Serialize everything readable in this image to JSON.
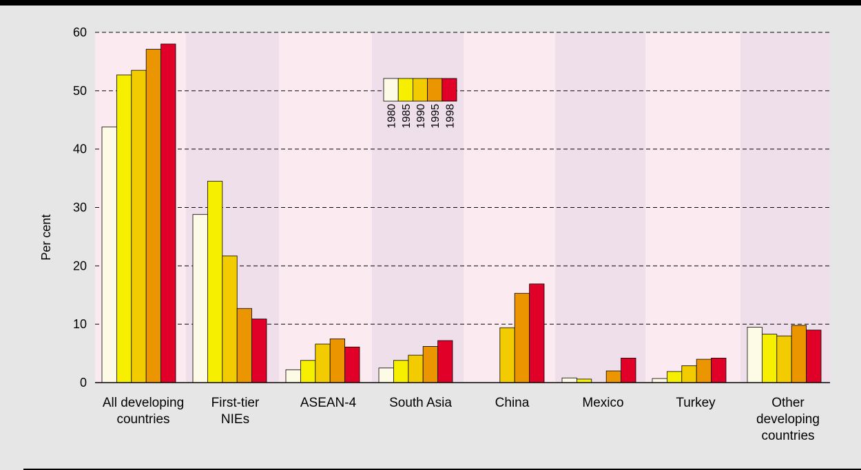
{
  "chart_data": {
    "type": "bar",
    "title": "",
    "xlabel": "",
    "ylabel": "Per cent",
    "ylim": [
      0,
      60
    ],
    "yticks": [
      0,
      10,
      20,
      30,
      40,
      50,
      60
    ],
    "grid": true,
    "legend_position": "top-center",
    "categories": [
      [
        "All developing",
        "countries"
      ],
      [
        "First-tier",
        "NIEs"
      ],
      [
        "ASEAN-4"
      ],
      [
        "South Asia"
      ],
      [
        "China"
      ],
      [
        "Mexico"
      ],
      [
        "Turkey"
      ],
      [
        "Other",
        "developing",
        "countries"
      ]
    ],
    "series": [
      {
        "name": "1980",
        "color": "#fdfbe6",
        "values": [
          43.8,
          28.8,
          2.2,
          2.5,
          null,
          0.8,
          0.7,
          9.5
        ]
      },
      {
        "name": "1985",
        "color": "#f7ef00",
        "values": [
          52.7,
          34.5,
          3.8,
          3.8,
          null,
          0.6,
          1.9,
          8.3
        ]
      },
      {
        "name": "1990",
        "color": "#f2cc00",
        "values": [
          53.5,
          21.7,
          6.6,
          4.7,
          9.4,
          null,
          2.9,
          8.0
        ]
      },
      {
        "name": "1995",
        "color": "#eb9500",
        "values": [
          57.1,
          12.7,
          7.5,
          6.2,
          15.3,
          2.0,
          4.0,
          9.8
        ]
      },
      {
        "name": "1998",
        "color": "#e00028",
        "values": [
          58.0,
          10.9,
          6.1,
          7.2,
          16.9,
          4.2,
          4.2,
          9.0
        ]
      }
    ],
    "band_colors": [
      "#fbeaf0",
      "#eedfeb"
    ]
  }
}
